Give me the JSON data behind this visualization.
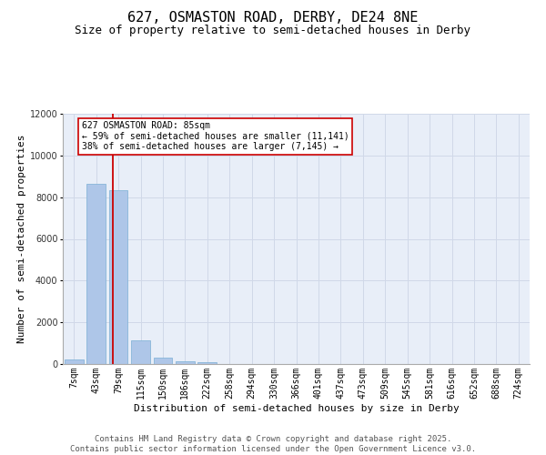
{
  "title": "627, OSMASTON ROAD, DERBY, DE24 8NE",
  "subtitle": "Size of property relative to semi-detached houses in Derby",
  "xlabel": "Distribution of semi-detached houses by size in Derby",
  "ylabel": "Number of semi-detached properties",
  "categories": [
    "7sqm",
    "43sqm",
    "79sqm",
    "115sqm",
    "150sqm",
    "186sqm",
    "222sqm",
    "258sqm",
    "294sqm",
    "330sqm",
    "366sqm",
    "401sqm",
    "437sqm",
    "473sqm",
    "509sqm",
    "545sqm",
    "581sqm",
    "616sqm",
    "652sqm",
    "688sqm",
    "724sqm"
  ],
  "values": [
    230,
    8650,
    8350,
    1150,
    320,
    120,
    70,
    0,
    0,
    0,
    0,
    0,
    0,
    0,
    0,
    0,
    0,
    0,
    0,
    0,
    0
  ],
  "bar_color": "#aec6e8",
  "bar_edge_color": "#7aafd4",
  "vline_x_index": 1.75,
  "vline_color": "#cc0000",
  "annotation_text": "627 OSMASTON ROAD: 85sqm\n← 59% of semi-detached houses are smaller (11,141)\n38% of semi-detached houses are larger (7,145) →",
  "annotation_box_color": "#ffffff",
  "annotation_box_edge_color": "#cc0000",
  "ylim": [
    0,
    12000
  ],
  "yticks": [
    0,
    2000,
    4000,
    6000,
    8000,
    10000,
    12000
  ],
  "grid_color": "#d0d8e8",
  "background_color": "#e8eef8",
  "footer_text": "Contains HM Land Registry data © Crown copyright and database right 2025.\nContains public sector information licensed under the Open Government Licence v3.0.",
  "title_fontsize": 11,
  "subtitle_fontsize": 9,
  "axis_label_fontsize": 8,
  "tick_fontsize": 7,
  "annotation_fontsize": 7,
  "footer_fontsize": 6.5
}
